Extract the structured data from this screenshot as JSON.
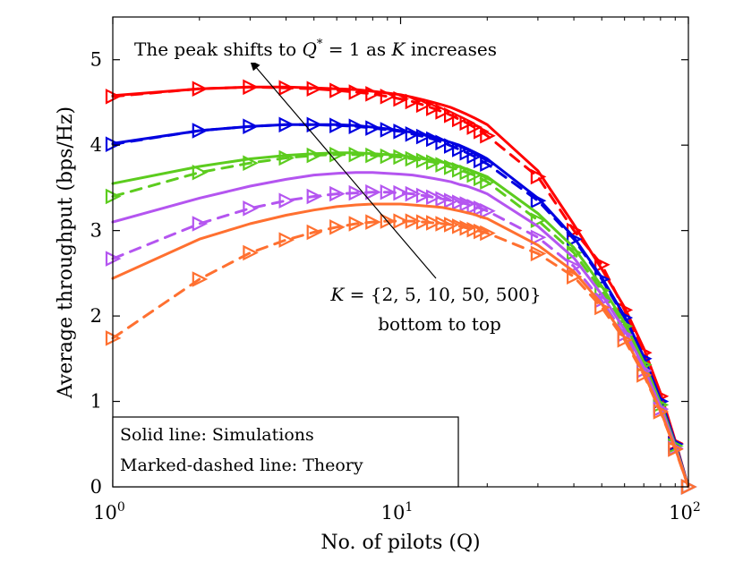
{
  "chart_data": {
    "type": "line",
    "xscale": "log",
    "xlabel": "No. of pilots (Q)",
    "ylabel": "Average throughput (bps/Hz)",
    "xlim": [
      1,
      100
    ],
    "ylim": [
      0,
      5.5
    ],
    "xticks": [
      {
        "value": 1,
        "base": "10",
        "exp": "0"
      },
      {
        "value": 10,
        "base": "10",
        "exp": "1"
      },
      {
        "value": 100,
        "base": "10",
        "exp": "2"
      }
    ],
    "yticks": [
      "0",
      "1",
      "2",
      "3",
      "4",
      "5"
    ],
    "x": [
      1,
      2,
      3,
      4,
      5,
      6,
      7,
      8,
      9,
      10,
      11,
      12,
      13,
      14,
      15,
      16,
      17,
      18,
      19,
      20,
      30,
      40,
      50,
      60,
      70,
      80,
      90,
      100
    ],
    "series": [
      {
        "name": "K=500 Simulation",
        "K": 500,
        "style": "solid",
        "color": "#ff0000",
        "values": [
          4.58,
          4.66,
          4.68,
          4.68,
          4.67,
          4.66,
          4.65,
          4.63,
          4.61,
          4.59,
          4.56,
          4.53,
          4.5,
          4.47,
          4.44,
          4.4,
          4.36,
          4.32,
          4.28,
          4.24,
          3.7,
          3.07,
          2.55,
          2.1,
          1.62,
          1.1,
          0.54,
          0.0
        ]
      },
      {
        "name": "K=500 Theory",
        "K": 500,
        "style": "marked-dashed",
        "color": "#ff0000",
        "values": [
          4.57,
          4.66,
          4.68,
          4.67,
          4.66,
          4.64,
          4.62,
          4.6,
          4.57,
          4.54,
          4.51,
          4.47,
          4.43,
          4.39,
          4.35,
          4.3,
          4.26,
          4.21,
          4.16,
          4.11,
          3.63,
          3.0,
          2.6,
          2.07,
          1.57,
          1.06,
          0.51,
          0.0
        ]
      },
      {
        "name": "K=50 Simulation",
        "K": 50,
        "style": "solid",
        "color": "#0000e0",
        "values": [
          4.02,
          4.17,
          4.22,
          4.24,
          4.24,
          4.24,
          4.23,
          4.21,
          4.19,
          4.17,
          4.15,
          4.12,
          4.09,
          4.06,
          4.03,
          4.0,
          3.96,
          3.92,
          3.88,
          3.84,
          3.38,
          2.92,
          2.45,
          2.0,
          1.52,
          1.03,
          0.52,
          0.0
        ]
      },
      {
        "name": "K=50 Theory",
        "K": 50,
        "style": "marked-dashed",
        "color": "#0000e0",
        "values": [
          4.01,
          4.17,
          4.22,
          4.24,
          4.24,
          4.23,
          4.22,
          4.2,
          4.18,
          4.16,
          4.13,
          4.1,
          4.07,
          4.03,
          3.99,
          3.95,
          3.91,
          3.87,
          3.82,
          3.78,
          3.35,
          2.9,
          2.43,
          1.98,
          1.5,
          1.0,
          0.5,
          0.0
        ]
      },
      {
        "name": "K=10 Simulation",
        "K": 10,
        "style": "solid",
        "color": "#5ccc1e",
        "values": [
          3.55,
          3.75,
          3.84,
          3.88,
          3.9,
          3.91,
          3.91,
          3.9,
          3.89,
          3.88,
          3.86,
          3.84,
          3.82,
          3.8,
          3.78,
          3.75,
          3.72,
          3.69,
          3.66,
          3.63,
          3.2,
          2.8,
          2.35,
          1.92,
          1.46,
          0.98,
          0.49,
          0.0
        ]
      },
      {
        "name": "K=10 Theory",
        "K": 10,
        "style": "marked-dashed",
        "color": "#5ccc1e",
        "values": [
          3.4,
          3.68,
          3.79,
          3.85,
          3.88,
          3.89,
          3.89,
          3.88,
          3.87,
          3.86,
          3.84,
          3.82,
          3.8,
          3.77,
          3.74,
          3.71,
          3.68,
          3.65,
          3.61,
          3.57,
          3.12,
          2.74,
          2.3,
          1.88,
          1.43,
          0.96,
          0.48,
          0.0
        ]
      },
      {
        "name": "K=5 Simulation",
        "K": 5,
        "style": "solid",
        "color": "#b455f0",
        "values": [
          3.1,
          3.38,
          3.52,
          3.6,
          3.65,
          3.67,
          3.68,
          3.68,
          3.67,
          3.66,
          3.65,
          3.63,
          3.61,
          3.59,
          3.57,
          3.54,
          3.52,
          3.49,
          3.46,
          3.43,
          3.05,
          2.68,
          2.25,
          1.84,
          1.4,
          0.94,
          0.47,
          0.0
        ]
      },
      {
        "name": "K=5 Theory",
        "K": 5,
        "style": "marked-dashed",
        "color": "#b455f0",
        "values": [
          2.67,
          3.08,
          3.26,
          3.35,
          3.4,
          3.43,
          3.44,
          3.45,
          3.45,
          3.44,
          3.43,
          3.41,
          3.39,
          3.37,
          3.35,
          3.33,
          3.31,
          3.28,
          3.26,
          3.23,
          2.92,
          2.58,
          2.18,
          1.78,
          1.36,
          0.91,
          0.45,
          0.0
        ]
      },
      {
        "name": "K=2 Simulation",
        "K": 2,
        "style": "solid",
        "color": "#ff7030",
        "values": [
          2.44,
          2.9,
          3.08,
          3.18,
          3.24,
          3.28,
          3.3,
          3.31,
          3.31,
          3.31,
          3.3,
          3.29,
          3.28,
          3.27,
          3.25,
          3.23,
          3.21,
          3.19,
          3.16,
          3.14,
          2.83,
          2.52,
          2.14,
          1.75,
          1.33,
          0.89,
          0.45,
          0.0
        ]
      },
      {
        "name": "K=2 Theory",
        "K": 2,
        "style": "marked-dashed",
        "color": "#ff7030",
        "values": [
          1.74,
          2.43,
          2.74,
          2.89,
          2.98,
          3.04,
          3.08,
          3.1,
          3.11,
          3.11,
          3.11,
          3.1,
          3.09,
          3.08,
          3.07,
          3.05,
          3.03,
          3.01,
          2.99,
          2.97,
          2.73,
          2.46,
          2.1,
          1.72,
          1.31,
          0.88,
          0.44,
          0.0
        ]
      }
    ],
    "annotations": {
      "peak": {
        "pre": "The peak shifts to ",
        "var1": "Q",
        "sup": "*",
        "mid": " = 1 as ",
        "var2": "K",
        "post": " increases"
      },
      "kset": {
        "var": "K",
        "eq": " = {2, 5, 10, 50, 500}"
      },
      "order": "bottom to top"
    },
    "legend": {
      "location": "lower-left",
      "lines": [
        "Solid line: Simulations",
        "Marked-dashed line: Theory"
      ]
    }
  }
}
